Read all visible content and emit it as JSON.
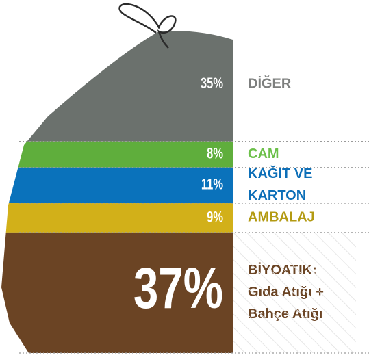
{
  "chart_data": {
    "type": "stacked-bag",
    "categories": [
      "DİĞER",
      "CAM",
      [
        "KAĞIT VE",
        "KARTON"
      ],
      "AMBALAJ",
      [
        "BİYOATIK:",
        "Gıda Atığı +",
        "Bahçe Atığı"
      ]
    ],
    "values": [
      35,
      8,
      11,
      9,
      37
    ],
    "value_labels": [
      "35%",
      "8%",
      "11%",
      "9%",
      "37%"
    ],
    "colors": [
      "#6b716d",
      "#5fae3c",
      "#0a72bb",
      "#d2b019",
      "#6b4424"
    ],
    "label_colors": [
      "#7d7f7e",
      "#6cc04a",
      "#0d6fb8",
      "#b39a12",
      "#6b4424"
    ]
  }
}
